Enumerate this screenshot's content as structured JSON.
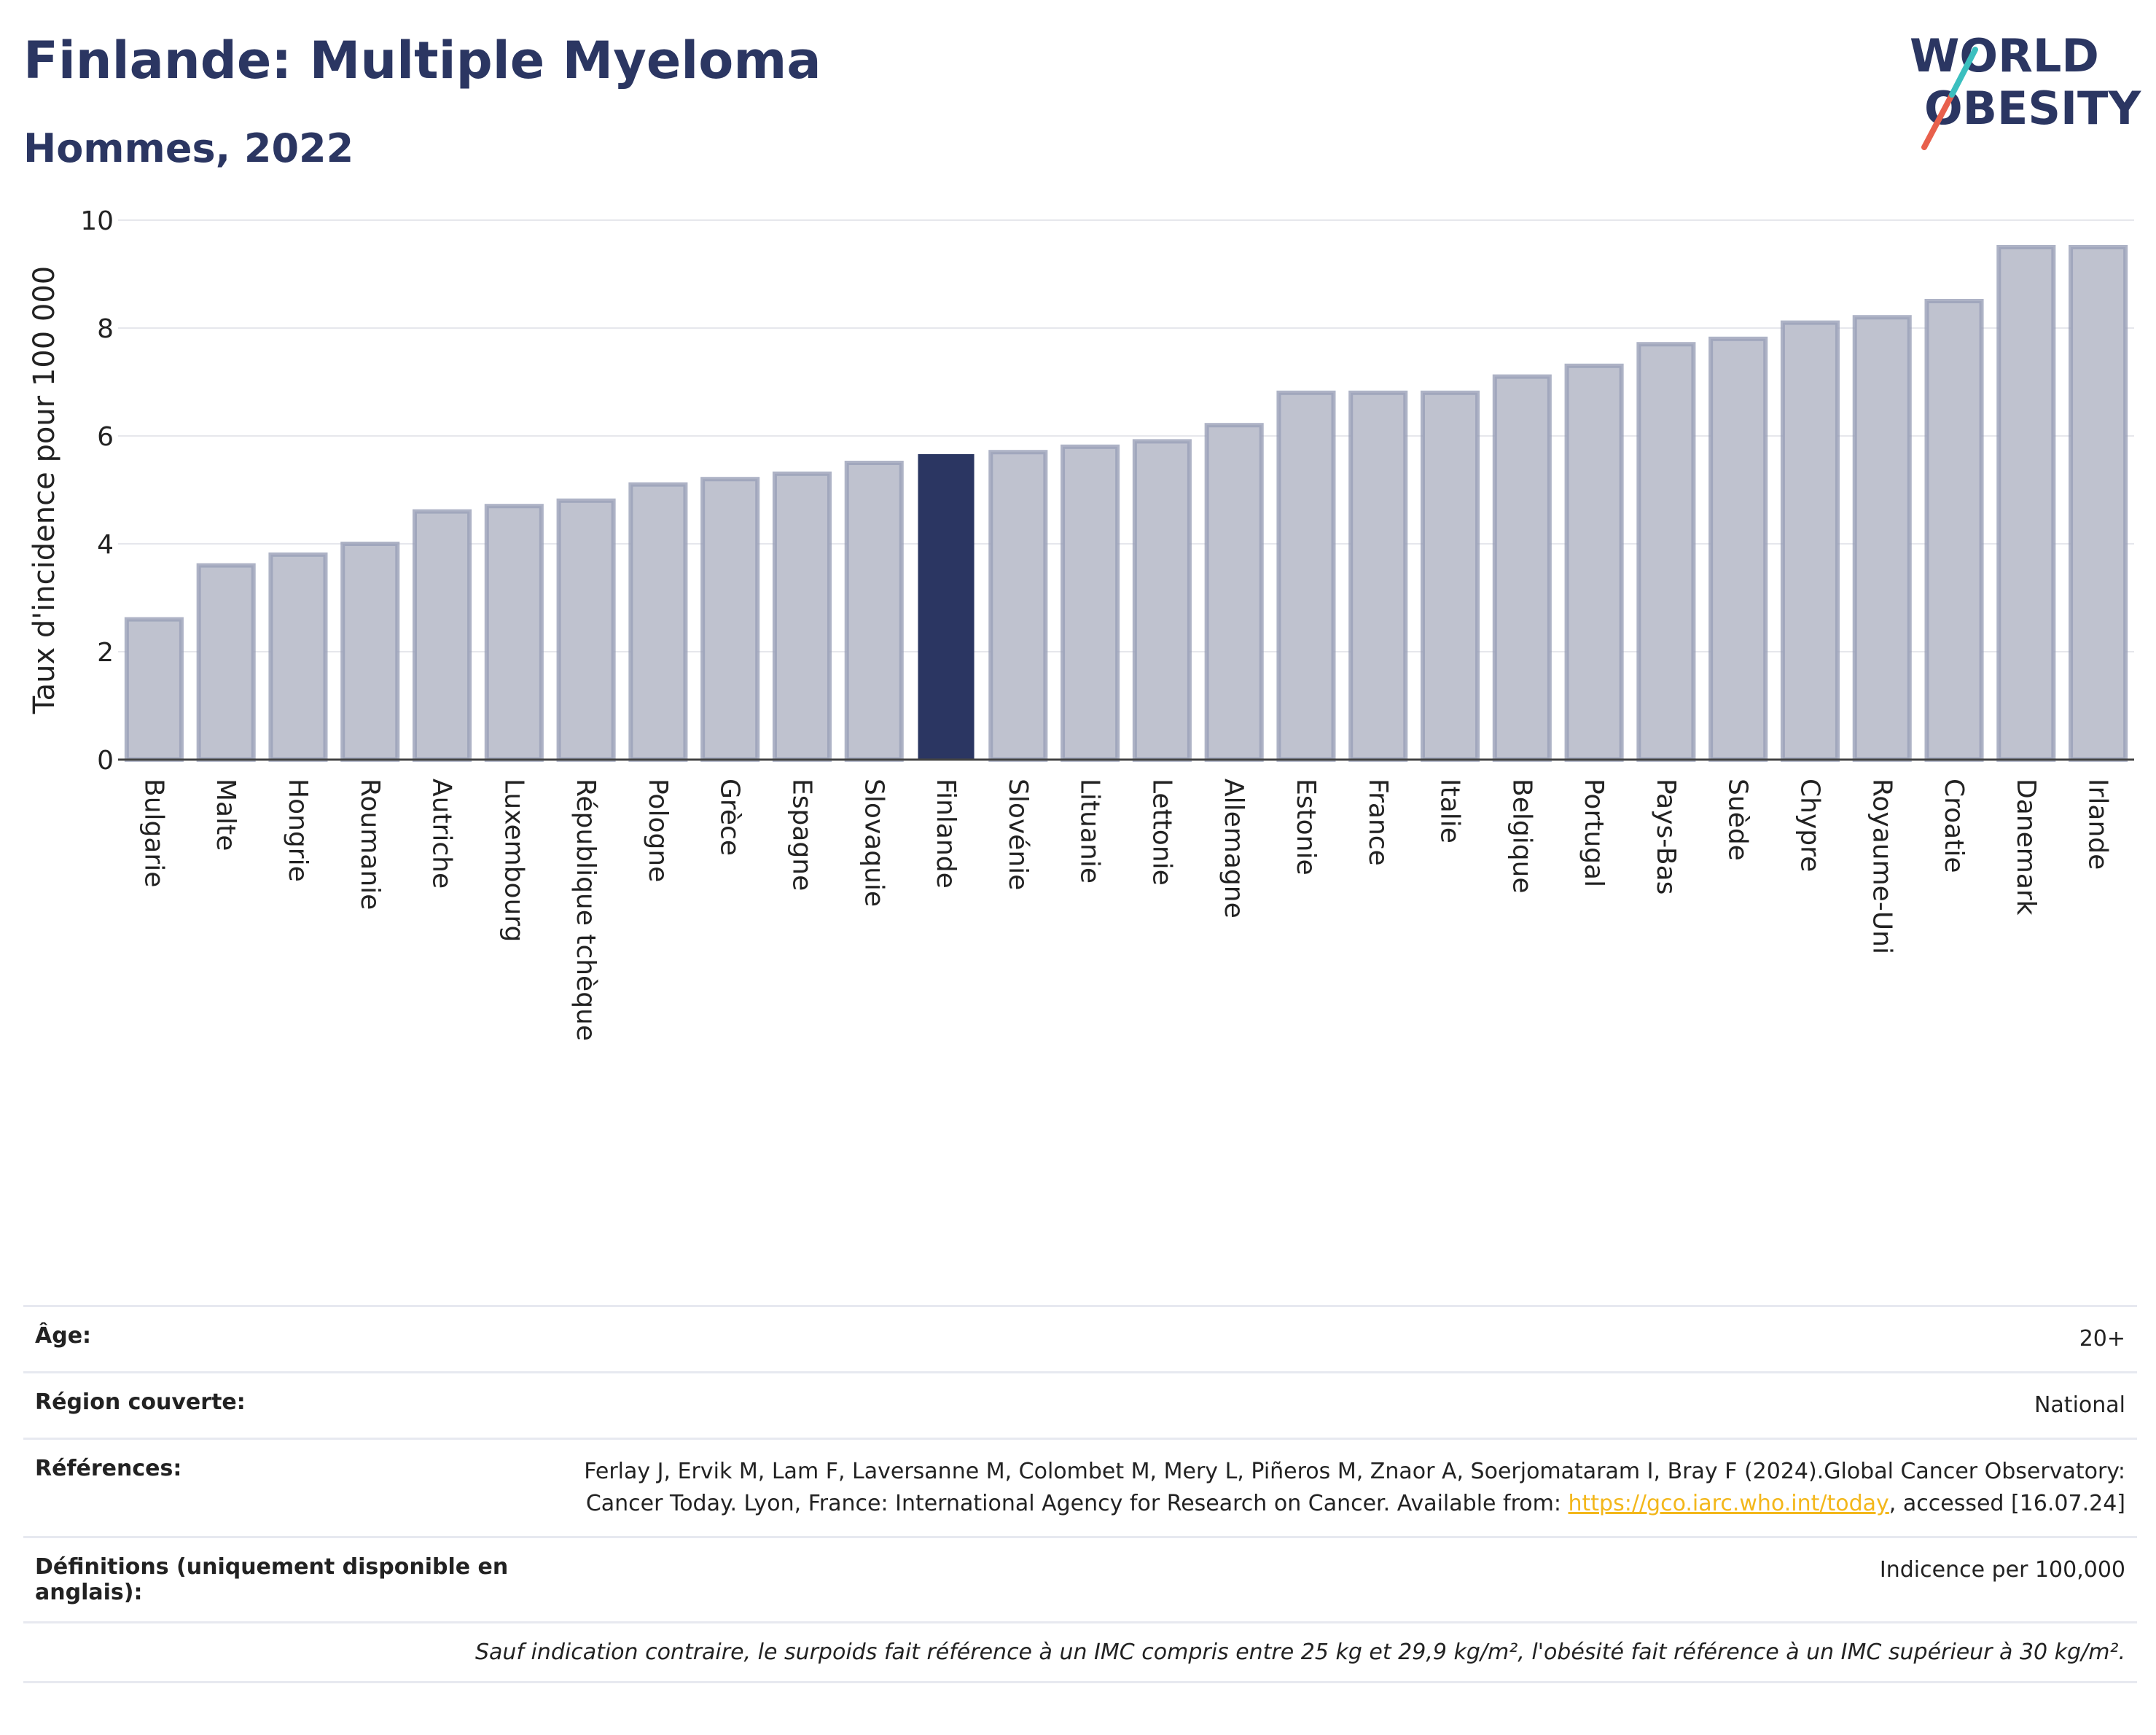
{
  "header": {
    "title": "Finlande: Multiple Myeloma",
    "subtitle": "Hommes, 2022",
    "logo_line1": "WORLD",
    "logo_line2": "OBESITY"
  },
  "colors": {
    "bar": "#bfc2cf",
    "bar_border": "#9aa0b8",
    "highlight": "#2b3662",
    "logo_teal": "#3bbfbf",
    "logo_red": "#e8604c"
  },
  "chart_data": {
    "type": "bar",
    "title": "Finlande: Multiple Myeloma",
    "subtitle": "Hommes, 2022",
    "ylabel": "Taux d'incidence pour 100 000",
    "ylim": [
      0,
      10
    ],
    "yticks": [
      0,
      2,
      4,
      6,
      8,
      10
    ],
    "grid": true,
    "highlight": "Finlande",
    "categories": [
      "Bulgarie",
      "Malte",
      "Hongrie",
      "Roumanie",
      "Autriche",
      "Luxembourg",
      "République tchèque",
      "Pologne",
      "Grèce",
      "Espagne",
      "Slovaquie",
      "Finlande",
      "Slovénie",
      "Lituanie",
      "Lettonie",
      "Allemagne",
      "Estonie",
      "France",
      "Italie",
      "Belgique",
      "Portugal",
      "Pays-Bas",
      "Suède",
      "Chypre",
      "Royaume-Uni",
      "Croatie",
      "Danemark",
      "Irlande"
    ],
    "values": [
      2.6,
      3.6,
      3.8,
      4.0,
      4.6,
      4.7,
      4.8,
      5.1,
      5.2,
      5.3,
      5.5,
      5.65,
      5.7,
      5.8,
      5.9,
      6.2,
      6.8,
      6.8,
      6.8,
      7.1,
      7.3,
      7.7,
      7.8,
      8.1,
      8.2,
      8.5,
      9.5,
      9.5
    ]
  },
  "meta": {
    "age_label": "Âge:",
    "age_value": "20+",
    "region_label": "Région couverte:",
    "region_value": "National",
    "refs_label": "Références:",
    "refs_text": "Ferlay J, Ervik M, Lam F, Laversanne M, Colombet M, Mery L, Piñeros M, Znaor A, Soerjomataram I, Bray F (2024).Global Cancer Observatory: Cancer Today. Lyon, France: International Agency for Research on Cancer. Available from:",
    "refs_link": "https://gco.iarc.who.int/today",
    "refs_tail": ", accessed [16.07.24]",
    "def_label": "Définitions (uniquement disponible en anglais):",
    "def_value": "Indicence per 100,000",
    "note": "Sauf indication contraire, le surpoids fait référence à un IMC compris entre 25 kg et 29,9 kg/m², l'obésité fait référence à un IMC supérieur à 30 kg/m²."
  }
}
